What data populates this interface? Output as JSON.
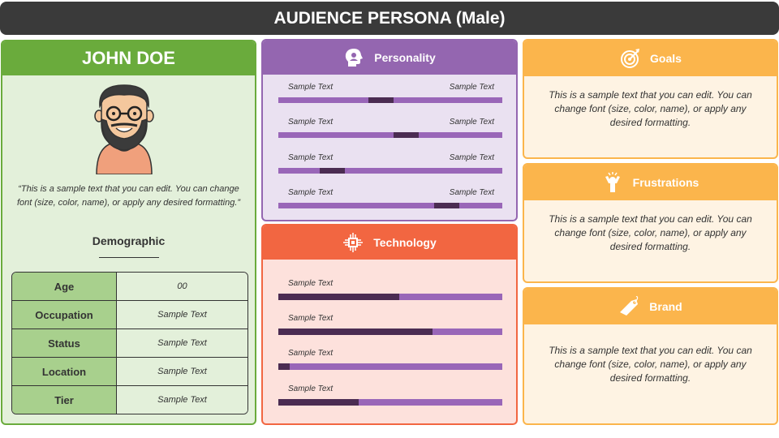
{
  "title": "AUDIENCE PERSONA (Male)",
  "persona": {
    "name": "JOHN DOE",
    "quote": "“This is a sample text that you can edit. You can change font (size, color, name), or apply any desired formatting.”",
    "demographic_title": "Demographic",
    "demographics": [
      {
        "key": "Age",
        "value": "00"
      },
      {
        "key": "Occupation",
        "value": "Sample Text"
      },
      {
        "key": "Status",
        "value": "Sample Text"
      },
      {
        "key": "Location",
        "value": "Sample Text"
      },
      {
        "key": "Tier",
        "value": "Sample Text"
      }
    ]
  },
  "personality": {
    "title": "Personality",
    "icon": "head-user-icon",
    "sliders": [
      {
        "left": "Sample Text",
        "right": "Sample Text",
        "position": 0.46
      },
      {
        "left": "Sample Text",
        "right": "Sample Text",
        "position": 0.57
      },
      {
        "left": "Sample Text",
        "right": "Sample Text",
        "position": 0.24
      },
      {
        "left": "Sample Text",
        "right": "Sample Text",
        "position": 0.75
      }
    ]
  },
  "technology": {
    "title": "Technology",
    "icon": "chip-icon",
    "bars": [
      {
        "label": "Sample Text",
        "level": 0.54
      },
      {
        "label": "Sample Text",
        "level": 0.69
      },
      {
        "label": "Sample Text",
        "level": 0.05
      },
      {
        "label": "Sample Text",
        "level": 0.36
      }
    ]
  },
  "goals": {
    "title": "Goals",
    "icon": "target-icon",
    "text": "This is a sample text that you can edit. You can change font (size, color, name), or apply any desired formatting."
  },
  "frustrations": {
    "title": "Frustrations",
    "icon": "frustrated-person-icon",
    "text": "This is a sample text that you can edit. You can change font (size, color, name), or apply any desired formatting."
  },
  "brand": {
    "title": "Brand",
    "icon": "brand-tag-icon",
    "text": "This is a sample text that you can edit. You can change font (size, color, name), or apply any desired formatting."
  },
  "colors": {
    "dark": "#3a3a3a",
    "green": "#6aab3c",
    "purple": "#9466b0",
    "red_orange": "#f26641",
    "orange": "#fbb54c",
    "slider_marker": "#4b2c52"
  }
}
